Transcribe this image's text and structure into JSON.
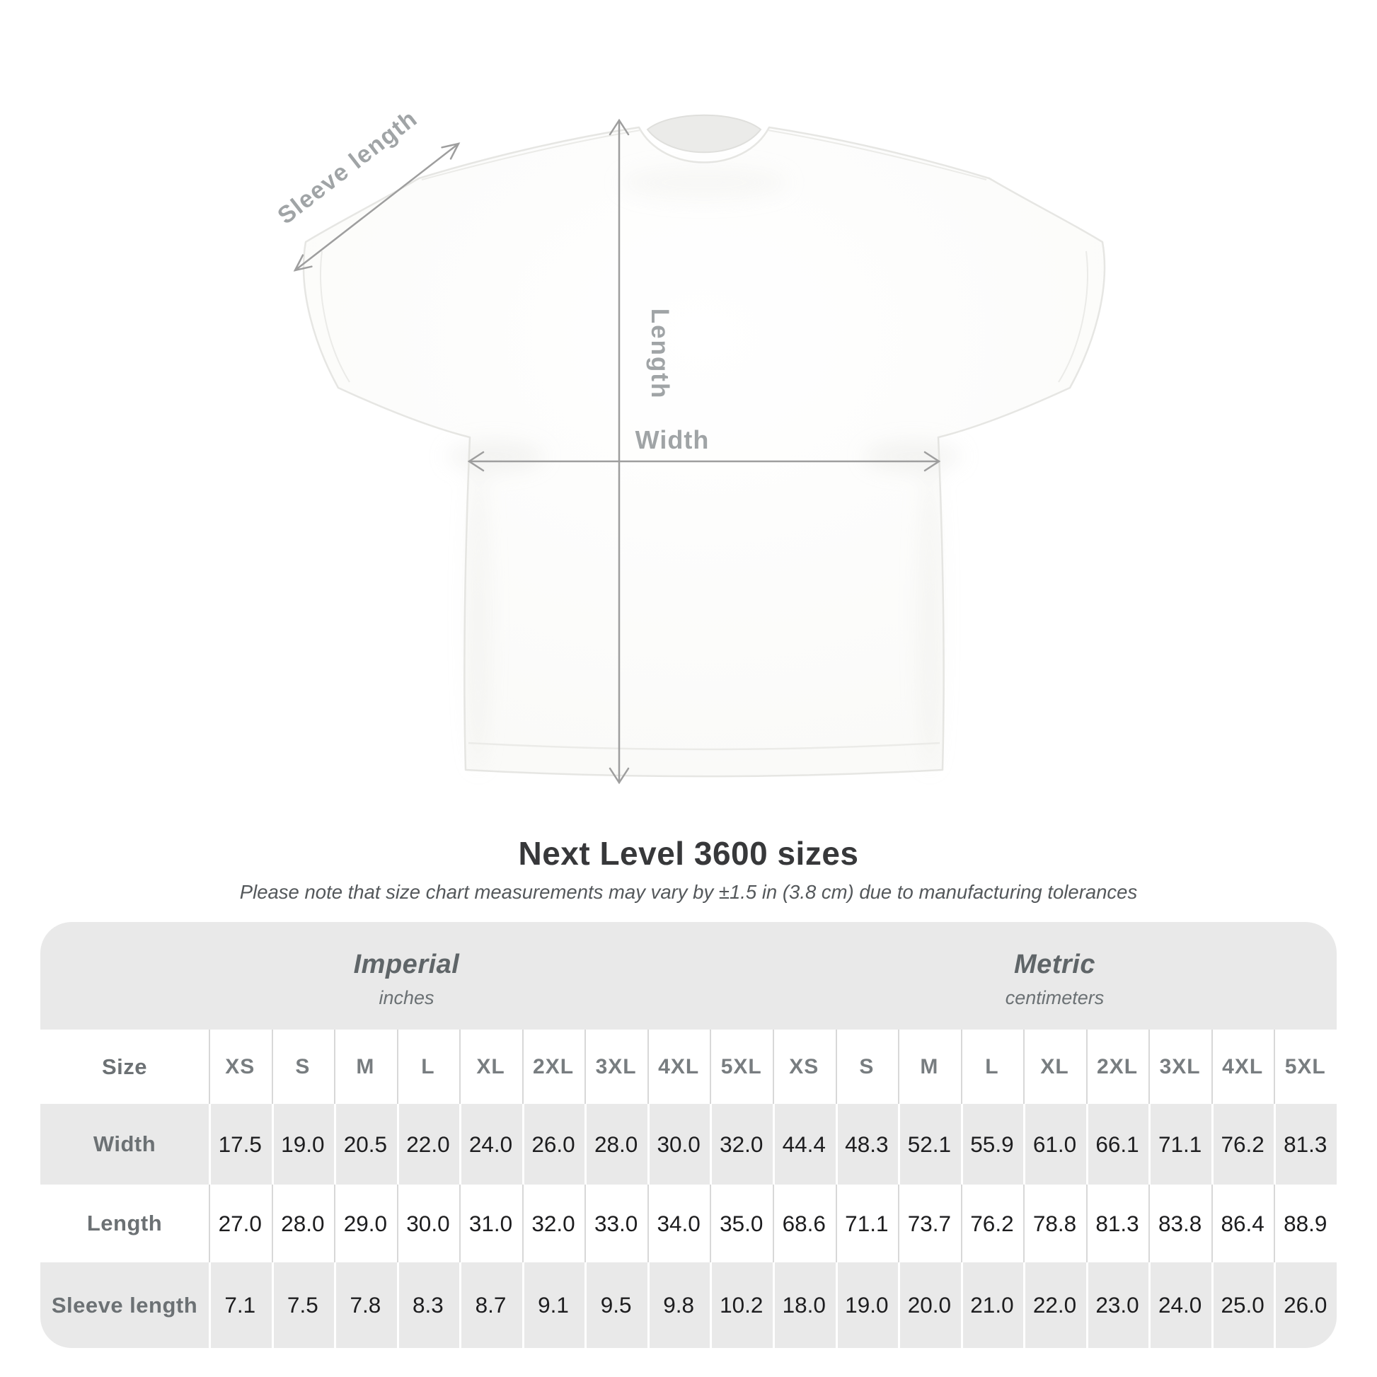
{
  "shirt_diagram": {
    "labels": {
      "sleeve_length": "Sleeve length",
      "length": "Length",
      "width": "Width"
    }
  },
  "heading": {
    "title": "Next Level 3600 sizes",
    "subtitle": "Please note that size chart measurements may vary by ±1.5 in (3.8 cm) due to manufacturing tolerances"
  },
  "chart_data": {
    "type": "table",
    "title": "Next Level 3600 sizes",
    "corner_label": "Size",
    "groups": [
      {
        "label": "Imperial",
        "sublabel": "inches",
        "span": 9
      },
      {
        "label": "Metric",
        "sublabel": "centimeters",
        "span": 9
      }
    ],
    "columns": [
      "XS",
      "S",
      "M",
      "L",
      "XL",
      "2XL",
      "3XL",
      "4XL",
      "5XL",
      "XS",
      "S",
      "M",
      "L",
      "XL",
      "2XL",
      "3XL",
      "4XL",
      "5XL"
    ],
    "rows": [
      {
        "label": "Width",
        "values": [
          "17.5",
          "19.0",
          "20.5",
          "22.0",
          "24.0",
          "26.0",
          "28.0",
          "30.0",
          "32.0",
          "44.4",
          "48.3",
          "52.1",
          "55.9",
          "61.0",
          "66.1",
          "71.1",
          "76.2",
          "81.3"
        ]
      },
      {
        "label": "Length",
        "values": [
          "27.0",
          "28.0",
          "29.0",
          "30.0",
          "31.0",
          "32.0",
          "33.0",
          "34.0",
          "35.0",
          "68.6",
          "71.1",
          "73.7",
          "76.2",
          "78.8",
          "81.3",
          "83.8",
          "86.4",
          "88.9"
        ]
      },
      {
        "label": "Sleeve length",
        "values": [
          "7.1",
          "7.5",
          "7.8",
          "8.3",
          "8.7",
          "9.1",
          "9.5",
          "9.8",
          "10.2",
          "18.0",
          "19.0",
          "20.0",
          "21.0",
          "22.0",
          "23.0",
          "24.0",
          "25.0",
          "26.0"
        ]
      }
    ]
  },
  "colors": {
    "band_gray": "#e9e9e9",
    "row_gray": "#e9e9e9",
    "separator_on_white": "#d8d8d8",
    "separator_on_gray": "#ffffff",
    "data_text": "#1d1d1f",
    "muted_text": "#6c7174",
    "arrow_gray": "#9e9e9e",
    "shirt_fill": "#fafaf8",
    "shirt_outline": "#e6e6e3"
  }
}
